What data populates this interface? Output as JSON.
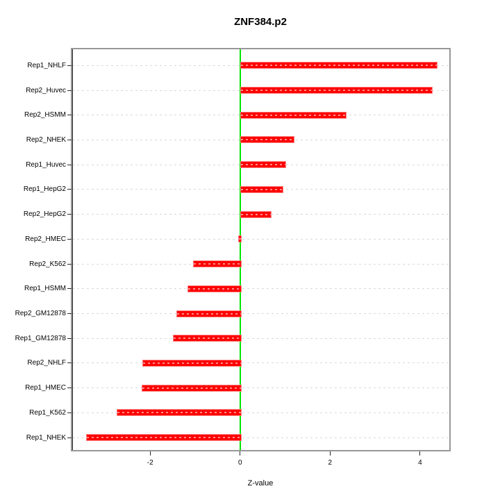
{
  "chart_data": {
    "type": "bar",
    "orientation": "horizontal",
    "title": "ZNF384.p2",
    "xlabel": "Z-value",
    "ylabel": "",
    "categories": [
      "Rep1_NHLF",
      "Rep2_Huvec",
      "Rep2_HSMM",
      "Rep2_NHEK",
      "Rep1_Huvec",
      "Rep1_HepG2",
      "Rep2_HepG2",
      "Rep2_HMEC",
      "Rep2_K562",
      "Rep1_HSMM",
      "Rep2_GM12878",
      "Rep1_GM12878",
      "Rep2_NHLF",
      "Rep1_HMEC",
      "Rep1_K562",
      "Rep1_NHEK"
    ],
    "values": [
      4.36,
      4.25,
      2.33,
      1.18,
      0.99,
      0.93,
      0.67,
      -0.04,
      -1.04,
      -1.17,
      -1.42,
      -1.5,
      -2.18,
      -2.19,
      -2.75,
      -3.43
    ],
    "xticks": [
      -2,
      0,
      2,
      4
    ],
    "xlim": [
      -3.74,
      4.65
    ],
    "legend": null,
    "grid": "horizontal-dotted",
    "zero_line": true
  },
  "colors": {
    "bar_fill": "#ff0000",
    "bar_edge": "#ff8080",
    "zero_line": "#00e500",
    "grid": "#d8d8d8",
    "box": "#979797",
    "text": "#000000",
    "background": "#ffffff"
  }
}
